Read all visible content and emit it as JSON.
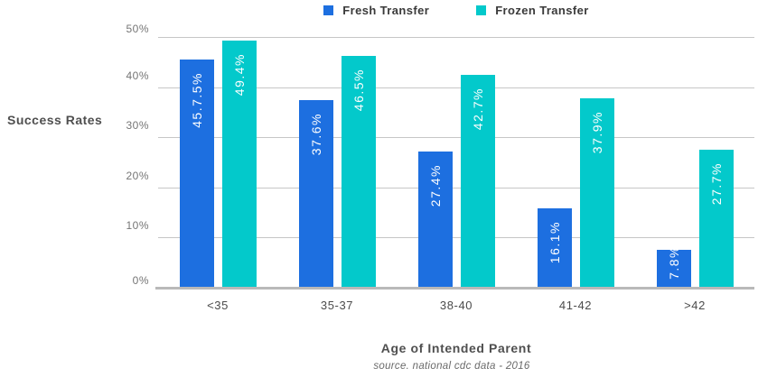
{
  "legend": {
    "items": [
      {
        "label": "Fresh Transfer"
      },
      {
        "label": "Frozen Transfer"
      }
    ]
  },
  "y_axis": {
    "title": "Success Rates",
    "ticks": [
      "0%",
      "10%",
      "20%",
      "30%",
      "40%",
      "50%"
    ]
  },
  "x_axis": {
    "title": "Age of Intended Parent"
  },
  "source_note": "source. national cdc data - 2016",
  "colors": {
    "fresh_blue": "#1d6fe0",
    "frozen_teal": "#03c9cb",
    "gridline": "#c6c6c6",
    "axis_line": "#b9b9b9"
  },
  "chart_data": {
    "type": "bar",
    "title": "",
    "categories": [
      "<35",
      "35-37",
      "38-40",
      "41-42",
      ">42"
    ],
    "series": [
      {
        "name": "Fresh Transfer",
        "color": "#1d6fe0",
        "values": [
          45.75,
          37.6,
          27.4,
          16.1,
          7.8
        ],
        "labels": [
          "45.7.5%",
          "37.6%",
          "27.4%",
          "16.1%",
          "7.8%"
        ]
      },
      {
        "name": "Frozen Transfer",
        "color": "#03c9cb",
        "values": [
          49.4,
          46.5,
          42.7,
          37.9,
          27.7
        ],
        "labels": [
          "49.4%",
          "46.5%",
          "42.7%",
          "37.9%",
          "27.7%"
        ]
      }
    ],
    "xlabel": "Age of Intended Parent",
    "ylabel": "Success Rates",
    "ylim": [
      0,
      50
    ],
    "ytick_step": 10,
    "grid": true,
    "legend_position": "top",
    "bar_label_rotation": "vertical",
    "source": "source. national cdc data - 2016"
  }
}
